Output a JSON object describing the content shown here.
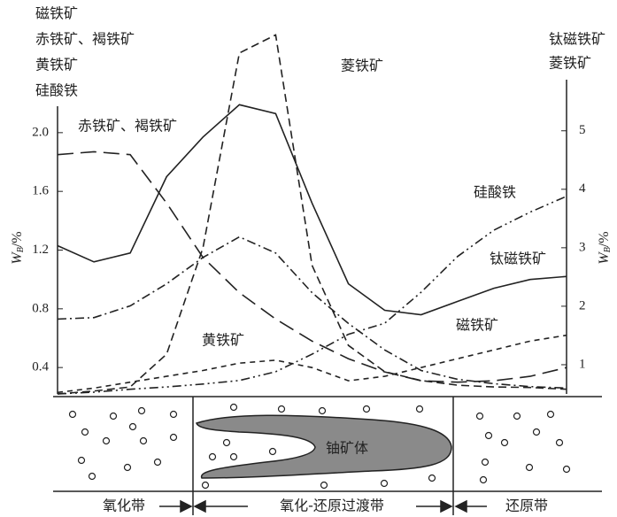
{
  "chart_data": {
    "type": "line",
    "left_labels": [
      "磁铁矿",
      "赤铁矿、褐铁矿",
      "黄铁矿",
      "硅酸铁"
    ],
    "right_labels": [
      "钛磁铁矿",
      "菱铁矿"
    ],
    "y_label": {
      "main": "W",
      "sub": "B",
      "unit": "/%"
    },
    "y2_label": {
      "main": "W",
      "sub": "B",
      "unit": "/%"
    },
    "categories": [
      null,
      null,
      null,
      null,
      null,
      null,
      null,
      null,
      null,
      null,
      null,
      null,
      null,
      null,
      null
    ],
    "ylim": [
      0.22,
      2.18
    ],
    "yticks": [
      0.4,
      0.8,
      1.2,
      1.6,
      {
        "value": 2,
        "label": "2.0"
      }
    ],
    "y2lim": [
      0.5,
      5.42
    ],
    "y2ticks": [
      1,
      2,
      3,
      4,
      5
    ],
    "series": [
      {
        "color": "#222",
        "dash": "solid",
        "values": [
          1.23,
          1.12,
          1.18,
          1.7,
          1.97,
          2.19,
          2.13,
          1.52,
          0.97,
          0.79,
          0.76,
          0.85,
          0.94,
          1.0,
          1.02
        ]
      },
      {
        "color": "#222",
        "dash": "long",
        "values": [
          1.85,
          1.87,
          1.85,
          1.52,
          1.15,
          0.91,
          0.73,
          0.58,
          0.46,
          0.37,
          0.31,
          0.3,
          0.31,
          0.34,
          0.4
        ]
      },
      {
        "color": "#222",
        "dash": "medium",
        "axis": "y2",
        "values": [
          0.5,
          0.55,
          0.62,
          1.18,
          3.0,
          6.33,
          6.64,
          2.7,
          1.33,
          0.88,
          0.73,
          0.65,
          0.62,
          0.61,
          0.58
        ]
      },
      {
        "color": "#222",
        "dash": "dashdot",
        "values": [
          0.73,
          0.74,
          0.82,
          0.97,
          1.15,
          1.29,
          1.18,
          0.91,
          0.7,
          0.52,
          0.38,
          0.32,
          0.29,
          0.27,
          0.26
        ]
      },
      {
        "color": "#222",
        "dash": "dashdotdot",
        "axis": "y2",
        "values": [
          0.5,
          0.53,
          0.58,
          0.62,
          0.67,
          0.73,
          0.88,
          1.18,
          1.52,
          1.71,
          2.24,
          2.85,
          3.3,
          3.61,
          3.88
        ]
      },
      {
        "color": "#222",
        "dash": "short",
        "values": [
          0.23,
          0.26,
          0.3,
          0.34,
          0.38,
          0.43,
          0.45,
          0.4,
          0.31,
          0.34,
          0.4,
          0.46,
          0.52,
          0.58,
          0.62
        ]
      }
    ],
    "annotations": [
      "赤铁矿、褐铁矿",
      "菱铁矿",
      "硅酸铁",
      "钛磁铁矿",
      "黄铁矿",
      "磁铁矿"
    ],
    "section": {
      "ore_body": "铀矿体",
      "zones": [
        "氧化带",
        "氧化-还原过渡带",
        "还原带"
      ]
    }
  }
}
